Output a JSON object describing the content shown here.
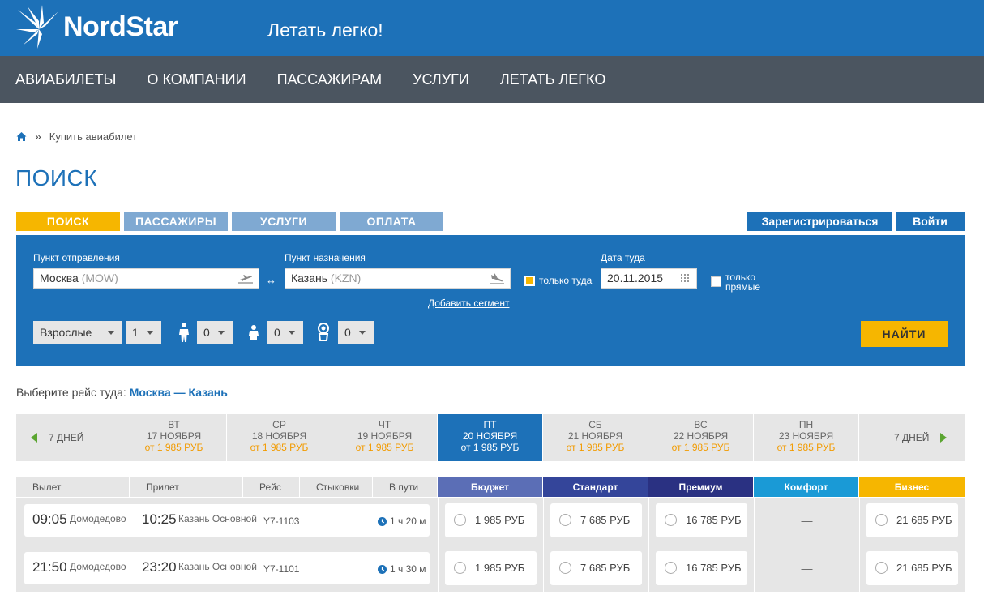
{
  "header": {
    "logo_text": "NordStar",
    "slogan": "Летать легко!",
    "brand_color": "#1d71b8"
  },
  "nav": {
    "items": [
      {
        "label": "АВИАБИЛЕТЫ"
      },
      {
        "label": "О КОМПАНИИ"
      },
      {
        "label": "ПАССАЖИРАМ"
      },
      {
        "label": "УСЛУГИ"
      },
      {
        "label": "ЛЕТАТЬ ЛЕГКО"
      }
    ]
  },
  "breadcrumb": {
    "home_icon": "home-icon",
    "separator": "»",
    "current": "Купить авиабилет"
  },
  "page_title": "ПОИСК",
  "steps": [
    {
      "label": "ПОИСК",
      "active": true
    },
    {
      "label": "ПАССАЖИРЫ",
      "active": false
    },
    {
      "label": "УСЛУГИ",
      "active": false
    },
    {
      "label": "ОПЛАТА",
      "active": false
    }
  ],
  "auth": {
    "register": "Зарегистрироваться",
    "login": "Войти"
  },
  "search": {
    "from_label": "Пункт отправления",
    "from_city": "Москва",
    "from_code": "(MOW)",
    "swap_symbol": "↔",
    "to_label": "Пункт назначения",
    "to_city": "Казань",
    "to_code": "(KZN)",
    "one_way_label": "только туда",
    "one_way_checked": true,
    "date_label": "Дата туда",
    "date_value": "20.11.2015",
    "direct_label_1": "только",
    "direct_label_2": "прямые",
    "direct_checked": false,
    "add_segment": "Добавить сегмент",
    "pax_type": "Взрослые",
    "adults": "1",
    "children": "0",
    "infants": "0",
    "infants_seat": "0",
    "find_button": "НАЙТИ"
  },
  "route": {
    "prefix": "Выберите рейс туда:",
    "route_text": "Москва — Казань"
  },
  "dates": {
    "prev_label": "7 ДНЕЙ",
    "next_label": "7 ДНЕЙ",
    "days": [
      {
        "weekday": "ВТ",
        "date": "17 НОЯБРЯ",
        "price": "от 1 985 РУБ",
        "active": false
      },
      {
        "weekday": "СР",
        "date": "18 НОЯБРЯ",
        "price": "от 1 985 РУБ",
        "active": false
      },
      {
        "weekday": "ЧТ",
        "date": "19 НОЯБРЯ",
        "price": "от 1 985 РУБ",
        "active": false
      },
      {
        "weekday": "ПТ",
        "date": "20 НОЯБРЯ",
        "price": "от 1 985 РУБ",
        "active": true
      },
      {
        "weekday": "СБ",
        "date": "21 НОЯБРЯ",
        "price": "от 1 985 РУБ",
        "active": false
      },
      {
        "weekday": "ВС",
        "date": "22 НОЯБРЯ",
        "price": "от 1 985 РУБ",
        "active": false
      },
      {
        "weekday": "ПН",
        "date": "23 НОЯБРЯ",
        "price": "от 1 985 РУБ",
        "active": false
      }
    ]
  },
  "table": {
    "columns": [
      "Вылет",
      "Прилет",
      "Рейс",
      "Стыковки",
      "В пути"
    ],
    "fares": [
      {
        "label": "Бюджет",
        "color": "#5b6eb6"
      },
      {
        "label": "Стандарт",
        "color": "#34459a"
      },
      {
        "label": "Премиум",
        "color": "#2a3182"
      },
      {
        "label": "Комфорт",
        "color": "#1a9ad6"
      },
      {
        "label": "Бизнес",
        "color": "#f6b600"
      }
    ],
    "rows": [
      {
        "dep_time": "09:05",
        "dep_airport": "Домодедово",
        "arr_time": "10:25",
        "arr_airport": "Казань Основной",
        "flight": "Y7-1103",
        "duration": "1 ч 20 м",
        "prices": [
          "1 985 РУБ",
          "7 685 РУБ",
          "16 785 РУБ",
          "—",
          "21 685 РУБ"
        ]
      },
      {
        "dep_time": "21:50",
        "dep_airport": "Домодедово",
        "arr_time": "23:20",
        "arr_airport": "Казань Основной",
        "flight": "Y7-1101",
        "duration": "1 ч 30 м",
        "prices": [
          "1 985 РУБ",
          "7 685 РУБ",
          "16 785 РУБ",
          "—",
          "21 685 РУБ"
        ]
      }
    ]
  }
}
